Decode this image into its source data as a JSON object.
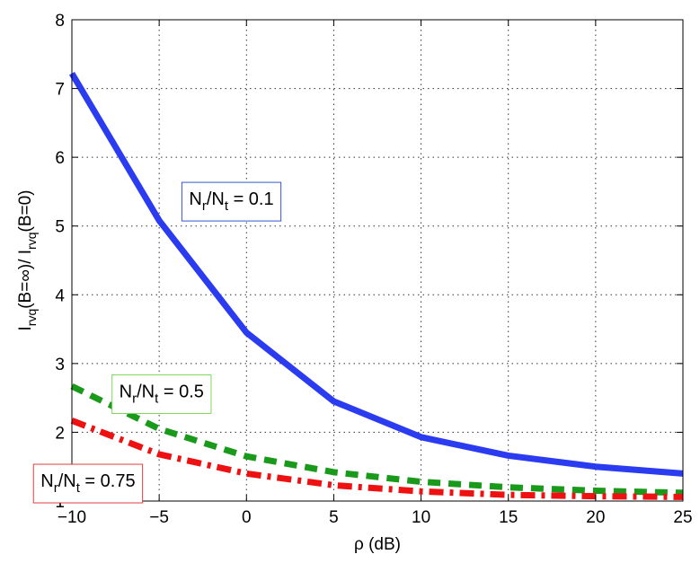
{
  "chart_data": {
    "type": "line",
    "xlabel": "ρ (dB)",
    "ylabel": "I_rvq(B=∞)/ I_rvq(B=0)",
    "xlim": [
      -10,
      25
    ],
    "ylim": [
      1,
      8
    ],
    "xticks": [
      -10,
      -5,
      0,
      5,
      10,
      15,
      20,
      25
    ],
    "yticks": [
      1,
      2,
      3,
      4,
      5,
      6,
      7,
      8
    ],
    "xtick_labels": [
      "−10",
      "−5",
      "0",
      "5",
      "10",
      "15",
      "20",
      "25"
    ],
    "ytick_labels": [
      "1",
      "2",
      "3",
      "4",
      "5",
      "6",
      "7",
      "8"
    ],
    "grid": true,
    "x": [
      -10,
      -5,
      0,
      5,
      10,
      15,
      20,
      25
    ],
    "series": [
      {
        "values": [
          7.22,
          5.08,
          3.45,
          2.45,
          1.93,
          1.66,
          1.5,
          1.4
        ],
        "color": "#2b3cf0",
        "style": "solid"
      },
      {
        "values": [
          2.67,
          2.05,
          1.65,
          1.42,
          1.28,
          1.2,
          1.15,
          1.12
        ],
        "color": "#1a9a1a",
        "style": "dashed"
      },
      {
        "values": [
          2.17,
          1.68,
          1.4,
          1.23,
          1.14,
          1.09,
          1.07,
          1.06
        ],
        "color": "#ee1111",
        "style": "dashdot"
      }
    ],
    "annotations": [
      {
        "base": "N",
        "sub1": "r",
        "mid": "/N",
        "sub2": "t",
        "tail": " = 0.1",
        "border": "#3355cc",
        "x": -3.7,
        "y": 5.4
      },
      {
        "base": "N",
        "sub1": "r",
        "mid": "/N",
        "sub2": "t",
        "tail": " = 0.5",
        "border": "#7fd65f",
        "x": -7.7,
        "y": 2.6
      },
      {
        "base": "N",
        "sub1": "r",
        "mid": "/N",
        "sub2": "t",
        "tail": " = 0.75",
        "border": "#e04040",
        "x": -12.2,
        "y": 1.3
      }
    ]
  }
}
